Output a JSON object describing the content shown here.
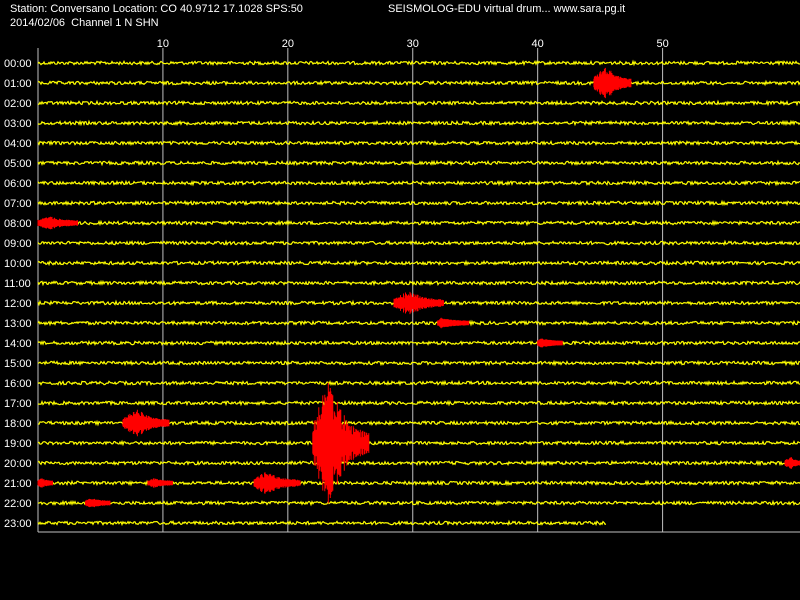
{
  "header": {
    "station_line": "Station: Conversano Location: CO 40.9712 17.1028 SPS:50",
    "title_line": "SEISMOLOG-EDU virtual drum... www.sara.pg.it",
    "date_line": "2014/02/06  Channel 1 N SHN"
  },
  "colors": {
    "background": "#000000",
    "trace": "#ffff00",
    "event": "#ff0000",
    "grid": "#c0c0c0",
    "text": "#ffffff"
  },
  "chart_data": {
    "type": "seismogram-drum",
    "title": "",
    "xlabel": "",
    "ylabel": "",
    "x_unit": "minutes",
    "xlim": [
      0,
      61
    ],
    "x_ticks": [
      10,
      20,
      30,
      40,
      50
    ],
    "grid": "vertical lines at each x tick",
    "rows": [
      "00:00",
      "01:00",
      "02:00",
      "03:00",
      "04:00",
      "05:00",
      "06:00",
      "07:00",
      "08:00",
      "09:00",
      "10:00",
      "11:00",
      "12:00",
      "13:00",
      "14:00",
      "15:00",
      "16:00",
      "17:00",
      "18:00",
      "19:00",
      "20:00",
      "21:00",
      "22:00",
      "23:00"
    ],
    "trace_end_minute": {
      "row": "23:00",
      "minute": 45.5
    },
    "events": [
      {
        "hour": "01:00",
        "start_min": 44.5,
        "end_min": 47.5,
        "peak_min": 45.5,
        "amplitude": 1.6
      },
      {
        "hour": "08:00",
        "start_min": 0.0,
        "end_min": 3.2,
        "peak_min": 1.0,
        "amplitude": 0.5
      },
      {
        "hour": "12:00",
        "start_min": 28.5,
        "end_min": 32.5,
        "peak_min": 29.8,
        "amplitude": 1.1
      },
      {
        "hour": "13:00",
        "start_min": 32.0,
        "end_min": 34.5,
        "peak_min": 32.3,
        "amplitude": 0.35
      },
      {
        "hour": "14:00",
        "start_min": 40.0,
        "end_min": 42.0,
        "peak_min": 40.3,
        "amplitude": 0.3
      },
      {
        "hour": "18:00",
        "start_min": 6.8,
        "end_min": 10.5,
        "peak_min": 8.0,
        "amplitude": 1.2
      },
      {
        "hour": "19:00",
        "start_min": 22.0,
        "end_min": 26.5,
        "peak_min": 23.3,
        "amplitude": 6.5
      },
      {
        "hour": "20:00",
        "start_min": 59.8,
        "end_min": 61.0,
        "peak_min": 60.3,
        "amplitude": 0.4
      },
      {
        "hour": "21:00",
        "start_min": 0.0,
        "end_min": 1.2,
        "peak_min": 0.3,
        "amplitude": 0.3
      },
      {
        "hour": "21:00",
        "start_min": 8.8,
        "end_min": 10.8,
        "peak_min": 9.3,
        "amplitude": 0.3
      },
      {
        "hour": "21:00",
        "start_min": 17.3,
        "end_min": 21.0,
        "peak_min": 18.3,
        "amplitude": 1.0
      },
      {
        "hour": "22:00",
        "start_min": 3.8,
        "end_min": 5.8,
        "peak_min": 4.3,
        "amplitude": 0.3
      }
    ]
  }
}
